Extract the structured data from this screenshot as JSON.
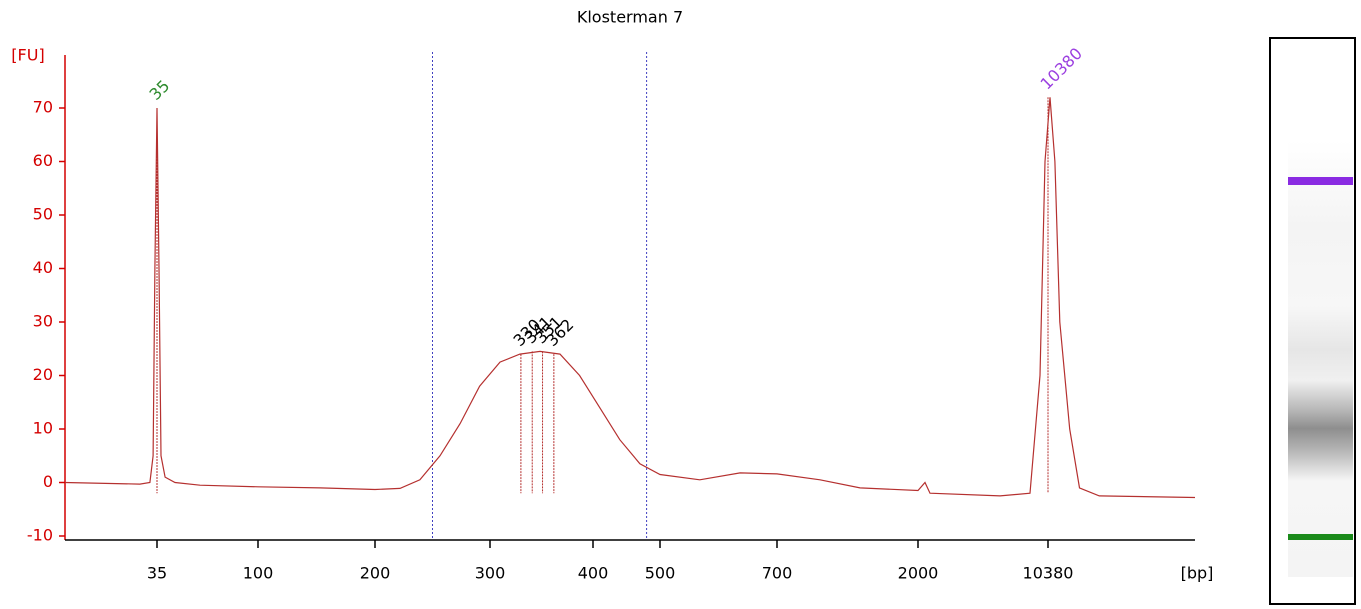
{
  "chart_data": {
    "type": "line",
    "title": "Klosterman 7",
    "y_label": "[FU]",
    "x_label": "[bp]",
    "color": "#b5302f",
    "axis_color": "#d40000",
    "xlim": [
      0,
      20000
    ],
    "xticks": [
      35,
      100,
      200,
      300,
      400,
      500,
      700,
      2000,
      10380
    ],
    "ylim": [
      -10,
      70
    ],
    "yticks": [
      -10,
      0,
      10,
      20,
      30,
      40,
      50,
      60,
      70
    ],
    "x": [
      0,
      28.5,
      32.3,
      33.5,
      34.2,
      35,
      36.3,
      37.6,
      40.2,
      46.6,
      62.7,
      100,
      153,
      200,
      221.7,
      239,
      256.5,
      274,
      291,
      309.7,
      329,
      348.5,
      368,
      387,
      410,
      440,
      470,
      500,
      568,
      637,
      700,
      1096,
      1465,
      2000,
      2451,
      2774,
      7290,
      9219,
      9864,
      10187,
      10509,
      10832,
      11154,
      11799,
      12444,
      13734,
      20000
    ],
    "values": [
      0,
      -0.3,
      0,
      5,
      40,
      70,
      40,
      5,
      1,
      0,
      -0.5,
      -0.8,
      -1,
      -1.3,
      -1.1,
      0.5,
      5,
      11,
      18,
      22.5,
      24,
      24.5,
      24,
      20,
      14,
      8,
      3.5,
      1.5,
      0.5,
      1.8,
      1.6,
      0.5,
      -1,
      -1.5,
      0,
      -2,
      -2.5,
      -2,
      20,
      60,
      72,
      60,
      30,
      10,
      -1,
      -2.5,
      -2.8
    ],
    "regions": [
      250,
      480
    ],
    "region_color": "#4040c0",
    "peaks": [
      {
        "bp": 35,
        "fu": 70,
        "color": "#2e8b2e"
      },
      {
        "bp": 330,
        "fu": 24,
        "color": "#000000"
      },
      {
        "bp": 341,
        "fu": 24.5,
        "color": "#000000"
      },
      {
        "bp": 351,
        "fu": 24.5,
        "color": "#000000"
      },
      {
        "bp": 362,
        "fu": 24,
        "color": "#000000"
      },
      {
        "bp": 10380,
        "fu": 72,
        "color": "#9b3fe0"
      }
    ]
  }
}
